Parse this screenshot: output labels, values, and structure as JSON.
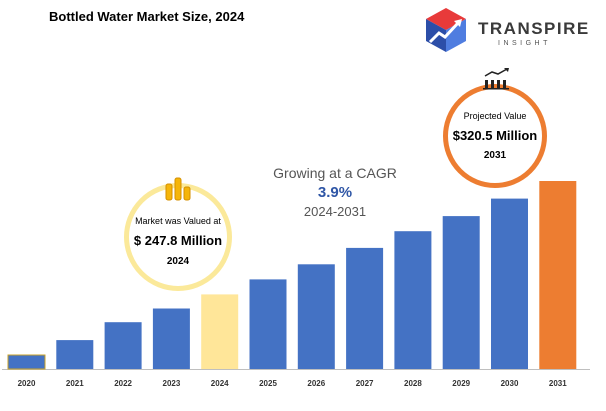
{
  "title": "Bottled Water Market Size, 2024",
  "logo": {
    "name": "TRANSPIRE",
    "sub": "INSIGHT",
    "icon": "transpire-cube-logo"
  },
  "cagr": {
    "label": "Growing at a CAGR",
    "value": "3.9%",
    "period": "2024-2031"
  },
  "callout_left": {
    "label": "Market was Valued at",
    "value": "$ 247.8 Million",
    "year": "2024",
    "icon": "coin-stack-icon"
  },
  "callout_right": {
    "label": "Projected Value",
    "value": "$320.5 Million",
    "year": "2031",
    "icon": "growth-bars-icon"
  },
  "colors": {
    "base": "#4472c4",
    "highlight_2024": "#ffe699",
    "highlight_2031": "#ed7d31",
    "bar_2020_outline": "#c9a227",
    "axis": "#bfbfbf"
  },
  "chart_data": {
    "type": "bar",
    "title": "Bottled Water Market Size, 2024",
    "categories": [
      "2020",
      "2021",
      "2022",
      "2023",
      "2024",
      "2025",
      "2026",
      "2027",
      "2028",
      "2029",
      "2030",
      "2031"
    ],
    "values": [
      204.6,
      218.5,
      230.0,
      238.8,
      247.8,
      257.4,
      267.1,
      277.6,
      288.3,
      298.0,
      309.2,
      320.5
    ],
    "xlabel": "",
    "ylabel": "",
    "ylim": [
      200,
      320.5
    ],
    "grid": false,
    "legend": "none"
  }
}
